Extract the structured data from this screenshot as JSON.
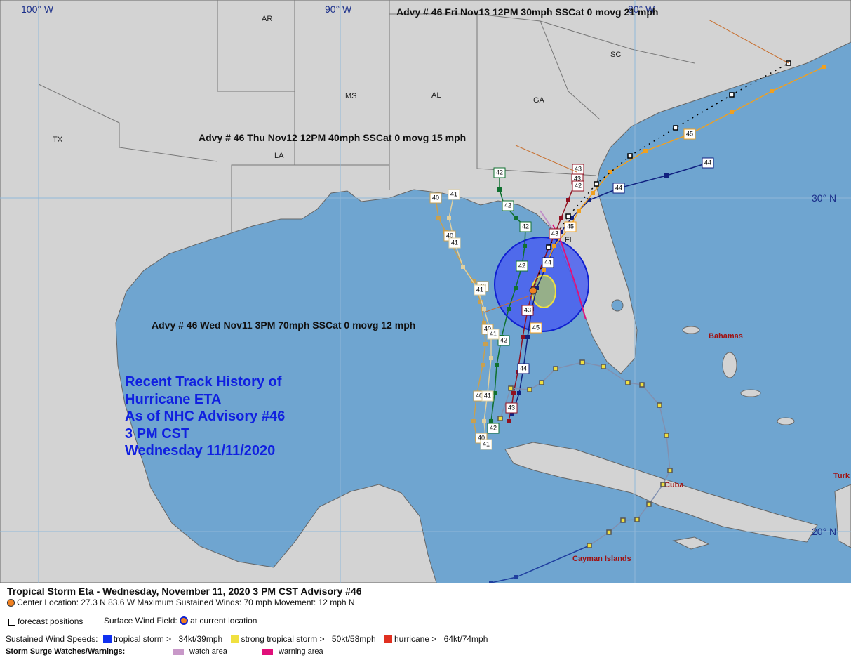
{
  "map": {
    "grid_labels": [
      "100° W",
      "90° W",
      "80° W",
      "30° N",
      "20° N"
    ],
    "region_labels": [
      "AR",
      "MS",
      "AL",
      "GA",
      "SC",
      "TX",
      "LA",
      "FL"
    ],
    "place_labels": [
      "Bahamas",
      "Cuba",
      "Cayman Islands",
      "Turk"
    ],
    "advisory_notes": [
      "Advy # 46 Fri Nov13 12PM  30mph SSCat 0 movg 21 mph",
      "Advy # 46 Thu Nov12 12PM  40mph SSCat 0 movg 15 mph",
      "Advy # 46 Wed Nov11 3PM  70mph SSCat 0 movg 12 mph"
    ],
    "history_note": [
      "Recent Track History of",
      "Hurricane ETA",
      "As of NHC Advisory #46",
      "3 PM CST",
      "Wednesday 11/11/2020"
    ],
    "track_labels": [
      "42",
      "42",
      "42",
      "42",
      "42",
      "42",
      "40",
      "41",
      "40",
      "41",
      "40",
      "41",
      "40",
      "41",
      "40",
      "41",
      "40",
      "41",
      "43",
      "43",
      "42",
      "43",
      "43",
      "43",
      "44",
      "44",
      "44",
      "44",
      "45",
      "45",
      "45"
    ]
  },
  "legend": {
    "title": "Tropical Storm Eta  -  Wednesday, November 11, 2020  3 PM CST   Advisory #46",
    "center": "Center Location: 27.3 N  83.6 W   Maximum Sustained Winds: 70 mph   Movement: 12 mph N",
    "forecast": "forecast positions",
    "wind_field": "Surface Wind Field:",
    "current": "at current location",
    "speeds": "Sustained Wind Speeds:",
    "ts": "tropical storm >= 34kt/39mph",
    "sts": "strong tropical storm >= 50kt/58mph",
    "hu": "hurricane >= 64kt/74mph",
    "surge": "Storm Surge Watches/Warnings:",
    "watch": "watch area",
    "warning": "warning area"
  }
}
